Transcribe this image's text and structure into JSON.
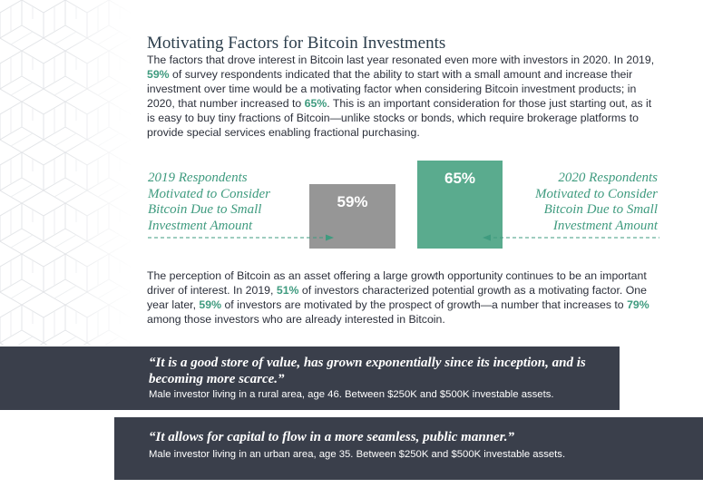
{
  "title": "Motivating Factors for Bitcoin Investments",
  "intro": {
    "s1": "The factors that drove interest in Bitcoin last year resonated even more with investors in 2020. In 2019, ",
    "h1": "59%",
    "s2": " of survey respondents indicated that the ability to start with a small amount and increase their investment over time would be a motivating factor when considering Bitcoin investment products; in 2020, that number increased to ",
    "h2": "65%",
    "s3": ". This is an important consideration for those just starting out, as it is easy to buy tiny fractions of Bitcoin—unlike stocks or bonds, which require brokerage platforms to provide special services enabling fractional purchasing."
  },
  "comparison": {
    "label_2019": "2019 Respondents Motivated to Consider Bitcoin Due to Small Investment Amount",
    "label_2020": "2020 Respondents Motivated to Consider Bitcoin Due to Small Investment Amount",
    "value_2019": "59%",
    "value_2020": "65%",
    "bar_2019_pct": 59,
    "bar_2020_pct": 65,
    "colors": {
      "bar_2019": "#969696",
      "bar_2020": "#5aab8e",
      "accent": "#3f9b7f"
    }
  },
  "growth": {
    "s1": "The perception of Bitcoin as an asset offering a large growth opportunity continues to be an important driver of interest. In 2019, ",
    "h1": "51%",
    "s2": " of investors characterized potential growth as a motivating factor. One year later, ",
    "h2": "59%",
    "s3": " of investors are motivated by the prospect of growth—a number that increases to ",
    "h3": "79%",
    "s4": " among those investors who are already interested in Bitcoin."
  },
  "quotes": [
    {
      "text": "“It is a good store of value, has grown exponentially since its inception, and is becoming more scarce.”",
      "attribution": "Male investor living in a rural area, age 46. Between $250K and $500K investable assets."
    },
    {
      "text": "“It allows for capital to flow in a more seamless, public manner.”",
      "attribution": "Male investor living in an urban area, age 35. Between $250K and $500K investable assets."
    }
  ]
}
